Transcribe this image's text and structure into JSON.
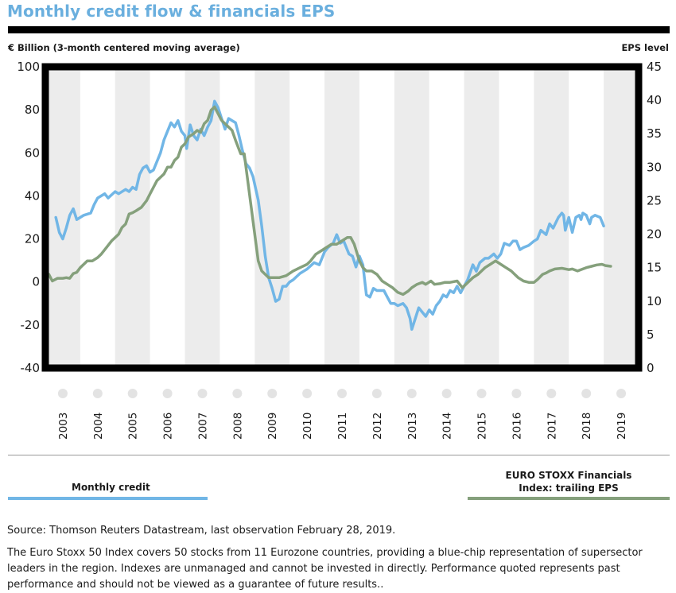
{
  "title": "Monthly credit flow & financials EPS",
  "left_axis_title": "€ Billion (3-month centered moving average)",
  "right_axis_title": "EPS level",
  "legend": {
    "credit": "Monthly credit",
    "eps": "EURO STOXX Financials Index: trailing EPS"
  },
  "source": "Source: Thomson Reuters Datastream, last observation February 28, 2019.",
  "disclaimer": "The Euro Stoxx 50 Index covers 50 stocks from 11 Eurozone countries, providing a blue-chip representation of supersector leaders in the region. Indexes are unmanaged and cannot be invested in directly. Performance quoted represents past performance and should not be viewed as a guarantee of future results..",
  "colors": {
    "credit": "#71b6e6",
    "eps": "#85a07c",
    "title": "#6aafde",
    "band": "#ececec"
  },
  "chart_data": {
    "type": "line",
    "title": "Monthly credit flow & financials EPS",
    "xlabel": "",
    "ylabel": "€ Billion (3-month centered moving average)",
    "y2label": "EPS level",
    "x_range": [
      2002.5,
      2019.5
    ],
    "ylim": [
      -40,
      100
    ],
    "y2lim": [
      0,
      45
    ],
    "y_ticks": [
      -40,
      -20,
      0,
      20,
      40,
      60,
      80,
      100
    ],
    "y2_ticks": [
      0,
      5,
      10,
      15,
      20,
      25,
      30,
      35,
      40,
      45
    ],
    "x_ticks": [
      "2003",
      "2004",
      "2005",
      "2006",
      "2007",
      "2008",
      "2009",
      "2010",
      "2011",
      "2012",
      "2013",
      "2014",
      "2015",
      "2016",
      "2017",
      "2018",
      "2019"
    ],
    "grid": "alternating vertical year bands",
    "legend_position": "bottom",
    "series": [
      {
        "name": "Monthly credit",
        "axis": "left",
        "points": [
          [
            2002.8,
            30
          ],
          [
            2002.9,
            23
          ],
          [
            2003.0,
            20
          ],
          [
            2003.1,
            25
          ],
          [
            2003.2,
            31
          ],
          [
            2003.3,
            34
          ],
          [
            2003.4,
            29
          ],
          [
            2003.6,
            31
          ],
          [
            2003.8,
            32
          ],
          [
            2003.9,
            36
          ],
          [
            2004.0,
            39
          ],
          [
            2004.2,
            41
          ],
          [
            2004.3,
            39
          ],
          [
            2004.5,
            42
          ],
          [
            2004.6,
            41
          ],
          [
            2004.8,
            43
          ],
          [
            2004.9,
            42
          ],
          [
            2005.0,
            44
          ],
          [
            2005.1,
            43
          ],
          [
            2005.2,
            50
          ],
          [
            2005.3,
            53
          ],
          [
            2005.4,
            54
          ],
          [
            2005.5,
            51
          ],
          [
            2005.6,
            52
          ],
          [
            2005.8,
            60
          ],
          [
            2005.9,
            66
          ],
          [
            2006.0,
            70
          ],
          [
            2006.1,
            74
          ],
          [
            2006.2,
            72
          ],
          [
            2006.3,
            75
          ],
          [
            2006.4,
            70
          ],
          [
            2006.5,
            68
          ],
          [
            2006.55,
            62
          ],
          [
            2006.65,
            73
          ],
          [
            2006.75,
            68
          ],
          [
            2006.85,
            66
          ],
          [
            2006.95,
            71
          ],
          [
            2007.05,
            68
          ],
          [
            2007.15,
            72
          ],
          [
            2007.25,
            75
          ],
          [
            2007.35,
            84
          ],
          [
            2007.45,
            81
          ],
          [
            2007.55,
            76
          ],
          [
            2007.65,
            71
          ],
          [
            2007.75,
            76
          ],
          [
            2007.85,
            75
          ],
          [
            2007.95,
            74
          ],
          [
            2008.05,
            68
          ],
          [
            2008.15,
            61
          ],
          [
            2008.25,
            55
          ],
          [
            2008.35,
            53
          ],
          [
            2008.45,
            49
          ],
          [
            2008.6,
            38
          ],
          [
            2008.7,
            26
          ],
          [
            2008.8,
            12
          ],
          [
            2008.9,
            2
          ],
          [
            2009.0,
            -3
          ],
          [
            2009.1,
            -9
          ],
          [
            2009.2,
            -8
          ],
          [
            2009.3,
            -2
          ],
          [
            2009.4,
            -2
          ],
          [
            2009.5,
            0
          ],
          [
            2009.6,
            1
          ],
          [
            2009.8,
            4
          ],
          [
            2010.0,
            6
          ],
          [
            2010.2,
            9
          ],
          [
            2010.35,
            8
          ],
          [
            2010.5,
            14
          ],
          [
            2010.6,
            16
          ],
          [
            2010.75,
            18
          ],
          [
            2010.85,
            22
          ],
          [
            2010.95,
            18
          ],
          [
            2011.05,
            19
          ],
          [
            2011.2,
            13
          ],
          [
            2011.3,
            12
          ],
          [
            2011.4,
            7
          ],
          [
            2011.5,
            12
          ],
          [
            2011.6,
            8
          ],
          [
            2011.7,
            -6
          ],
          [
            2011.8,
            -7
          ],
          [
            2011.9,
            -3
          ],
          [
            2012.0,
            -4
          ],
          [
            2012.2,
            -4
          ],
          [
            2012.3,
            -7
          ],
          [
            2012.4,
            -10
          ],
          [
            2012.5,
            -10
          ],
          [
            2012.6,
            -11
          ],
          [
            2012.75,
            -10
          ],
          [
            2012.85,
            -12
          ],
          [
            2012.95,
            -17
          ],
          [
            2013.0,
            -22
          ],
          [
            2013.1,
            -17
          ],
          [
            2013.2,
            -12
          ],
          [
            2013.3,
            -14
          ],
          [
            2013.4,
            -16
          ],
          [
            2013.5,
            -13
          ],
          [
            2013.6,
            -15
          ],
          [
            2013.7,
            -11
          ],
          [
            2013.8,
            -9
          ],
          [
            2013.9,
            -6
          ],
          [
            2014.0,
            -7
          ],
          [
            2014.1,
            -4
          ],
          [
            2014.2,
            -5
          ],
          [
            2014.3,
            -2
          ],
          [
            2014.4,
            -5
          ],
          [
            2014.5,
            -2
          ],
          [
            2014.6,
            1
          ],
          [
            2014.75,
            8
          ],
          [
            2014.85,
            5
          ],
          [
            2014.95,
            9
          ],
          [
            2015.1,
            11
          ],
          [
            2015.2,
            11
          ],
          [
            2015.35,
            13
          ],
          [
            2015.45,
            11
          ],
          [
            2015.55,
            13
          ],
          [
            2015.65,
            18
          ],
          [
            2015.8,
            17
          ],
          [
            2015.9,
            19
          ],
          [
            2016.0,
            19
          ],
          [
            2016.1,
            15
          ],
          [
            2016.2,
            16
          ],
          [
            2016.35,
            17
          ],
          [
            2016.5,
            19
          ],
          [
            2016.6,
            20
          ],
          [
            2016.7,
            24
          ],
          [
            2016.85,
            22
          ],
          [
            2016.95,
            27
          ],
          [
            2017.05,
            25
          ],
          [
            2017.2,
            30
          ],
          [
            2017.3,
            32
          ],
          [
            2017.35,
            31
          ],
          [
            2017.4,
            24
          ],
          [
            2017.5,
            30
          ],
          [
            2017.6,
            23
          ],
          [
            2017.7,
            30
          ],
          [
            2017.8,
            31
          ],
          [
            2017.85,
            29
          ],
          [
            2017.9,
            32
          ],
          [
            2018.0,
            31
          ],
          [
            2018.1,
            27
          ],
          [
            2018.15,
            30
          ],
          [
            2018.25,
            31
          ],
          [
            2018.4,
            30
          ],
          [
            2018.5,
            26
          ]
        ]
      },
      {
        "name": "EURO STOXX Financials Index: trailing EPS",
        "axis": "right",
        "points": [
          [
            2002.6,
            14
          ],
          [
            2002.7,
            13
          ],
          [
            2002.85,
            13.4
          ],
          [
            2003.0,
            13.4
          ],
          [
            2003.1,
            13.5
          ],
          [
            2003.2,
            13.4
          ],
          [
            2003.3,
            14.1
          ],
          [
            2003.4,
            14.3
          ],
          [
            2003.5,
            15
          ],
          [
            2003.6,
            15.5
          ],
          [
            2003.7,
            16
          ],
          [
            2003.85,
            16
          ],
          [
            2004.0,
            16.5
          ],
          [
            2004.1,
            17
          ],
          [
            2004.25,
            18
          ],
          [
            2004.4,
            19
          ],
          [
            2004.5,
            19.5
          ],
          [
            2004.6,
            20
          ],
          [
            2004.7,
            21
          ],
          [
            2004.8,
            21.5
          ],
          [
            2004.9,
            23
          ],
          [
            2005.0,
            23.2
          ],
          [
            2005.1,
            23.5
          ],
          [
            2005.25,
            24
          ],
          [
            2005.4,
            25
          ],
          [
            2005.5,
            26
          ],
          [
            2005.6,
            27
          ],
          [
            2005.7,
            28
          ],
          [
            2005.8,
            28.5
          ],
          [
            2005.9,
            29
          ],
          [
            2006.0,
            30
          ],
          [
            2006.1,
            30
          ],
          [
            2006.2,
            31
          ],
          [
            2006.3,
            31.5
          ],
          [
            2006.4,
            33
          ],
          [
            2006.5,
            33.5
          ],
          [
            2006.6,
            34.5
          ],
          [
            2006.75,
            35
          ],
          [
            2006.85,
            35.5
          ],
          [
            2006.95,
            35.2
          ],
          [
            2007.05,
            36.5
          ],
          [
            2007.15,
            37
          ],
          [
            2007.25,
            38.5
          ],
          [
            2007.35,
            39
          ],
          [
            2007.45,
            38
          ],
          [
            2007.55,
            37
          ],
          [
            2007.65,
            36.5
          ],
          [
            2007.75,
            36
          ],
          [
            2007.85,
            35.5
          ],
          [
            2007.95,
            34
          ],
          [
            2008.1,
            32
          ],
          [
            2008.2,
            32
          ],
          [
            2008.3,
            28
          ],
          [
            2008.4,
            24
          ],
          [
            2008.5,
            20
          ],
          [
            2008.6,
            16
          ],
          [
            2008.7,
            14.5
          ],
          [
            2008.8,
            14
          ],
          [
            2008.9,
            13.5
          ],
          [
            2009.0,
            13.5
          ],
          [
            2009.2,
            13.5
          ],
          [
            2009.4,
            13.8
          ],
          [
            2009.6,
            14.5
          ],
          [
            2009.8,
            15
          ],
          [
            2010.0,
            15.5
          ],
          [
            2010.1,
            16
          ],
          [
            2010.25,
            17
          ],
          [
            2010.4,
            17.5
          ],
          [
            2010.55,
            18
          ],
          [
            2010.7,
            18.5
          ],
          [
            2010.85,
            18.5
          ],
          [
            2011.0,
            19
          ],
          [
            2011.15,
            19.5
          ],
          [
            2011.25,
            19.5
          ],
          [
            2011.35,
            18.5
          ],
          [
            2011.5,
            16
          ],
          [
            2011.6,
            15
          ],
          [
            2011.7,
            14.5
          ],
          [
            2011.85,
            14.5
          ],
          [
            2012.0,
            14
          ],
          [
            2012.15,
            13
          ],
          [
            2012.3,
            12.5
          ],
          [
            2012.45,
            12
          ],
          [
            2012.6,
            11.3
          ],
          [
            2012.75,
            11
          ],
          [
            2012.9,
            11.5
          ],
          [
            2013.0,
            12
          ],
          [
            2013.15,
            12.5
          ],
          [
            2013.3,
            12.8
          ],
          [
            2013.4,
            12.5
          ],
          [
            2013.55,
            13
          ],
          [
            2013.65,
            12.5
          ],
          [
            2013.8,
            12.6
          ],
          [
            2013.95,
            12.8
          ],
          [
            2014.1,
            12.8
          ],
          [
            2014.3,
            13
          ],
          [
            2014.45,
            12
          ],
          [
            2014.55,
            12.5
          ],
          [
            2014.65,
            13
          ],
          [
            2014.75,
            13.5
          ],
          [
            2014.9,
            14
          ],
          [
            2015.0,
            14.5
          ],
          [
            2015.1,
            15
          ],
          [
            2015.25,
            15.5
          ],
          [
            2015.4,
            16
          ],
          [
            2015.55,
            15.5
          ],
          [
            2015.7,
            15
          ],
          [
            2015.85,
            14.5
          ],
          [
            2015.95,
            14
          ],
          [
            2016.05,
            13.5
          ],
          [
            2016.2,
            13
          ],
          [
            2016.35,
            12.8
          ],
          [
            2016.5,
            12.8
          ],
          [
            2016.6,
            13.2
          ],
          [
            2016.75,
            14
          ],
          [
            2016.85,
            14.2
          ],
          [
            2016.95,
            14.5
          ],
          [
            2017.1,
            14.8
          ],
          [
            2017.3,
            14.9
          ],
          [
            2017.5,
            14.7
          ],
          [
            2017.6,
            14.8
          ],
          [
            2017.75,
            14.5
          ],
          [
            2017.9,
            14.8
          ],
          [
            2018.0,
            15
          ],
          [
            2018.15,
            15.2
          ],
          [
            2018.3,
            15.4
          ],
          [
            2018.45,
            15.5
          ],
          [
            2018.55,
            15.3
          ],
          [
            2018.7,
            15.2
          ]
        ]
      }
    ]
  }
}
